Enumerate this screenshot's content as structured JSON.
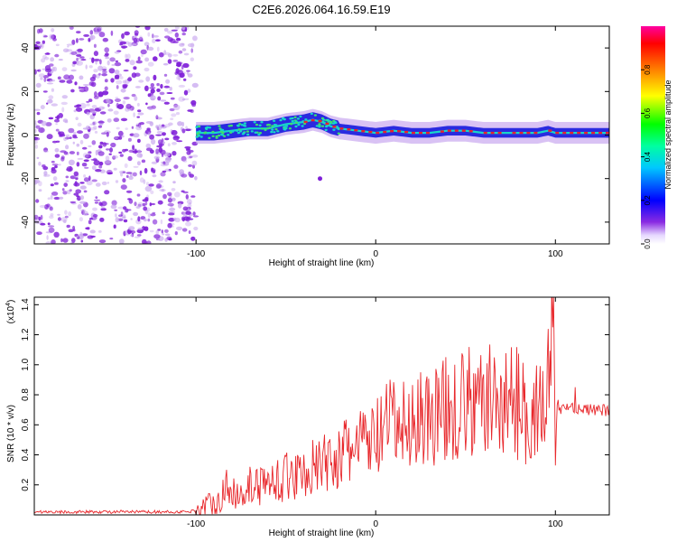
{
  "figure_title": "C2E6.2026.064.16.59.E19",
  "colors": {
    "scatter_purple": "#7f1fd8",
    "scatter_light": "#c9a8ef",
    "band_blue": "#2a2ae0",
    "band_cyan": "#18d6c8",
    "band_green": "#3ee06a",
    "band_red": "#e8242c",
    "snr_line": "#e8282c"
  },
  "chart_data": [
    {
      "type": "heatmap",
      "title": "C2E6.2026.064.16.59.E19",
      "xlabel": "Height of straight line (km)",
      "ylabel": "Frequency (Hz)",
      "xlim": [
        -190,
        130
      ],
      "ylim": [
        -50,
        50
      ],
      "xticks": [
        "-100",
        "0",
        "100"
      ],
      "xtick_values": [
        -100,
        0,
        100
      ],
      "yticks": [
        "-40",
        "-20",
        "0",
        "20",
        "40"
      ],
      "ytick_values": [
        -40,
        -20,
        0,
        20,
        40
      ],
      "noise_region_x": [
        -190,
        -100
      ],
      "ridge": {
        "x": [
          -100,
          -90,
          -80,
          -70,
          -60,
          -50,
          -40,
          -35,
          -30,
          -25,
          -20,
          -10,
          0,
          10,
          20,
          30,
          40,
          50,
          60,
          70,
          80,
          90,
          96,
          100,
          110,
          120,
          130
        ],
        "freq": [
          1,
          1,
          2,
          3,
          3,
          5,
          6,
          7,
          6,
          4,
          3,
          2,
          1,
          2,
          1,
          1,
          2,
          2,
          1,
          1,
          1,
          1,
          2,
          1,
          1,
          1,
          1
        ]
      },
      "outlier": {
        "x": -31,
        "freq": -20
      },
      "colorbar": {
        "label": "Normalized spectral amplitude",
        "ticks": [
          "0.0",
          "0.2",
          "0.4",
          "0.6",
          "0.8"
        ],
        "tick_values": [
          0.0,
          0.2,
          0.4,
          0.6,
          0.8
        ],
        "range": [
          0,
          1
        ]
      }
    },
    {
      "type": "line",
      "xlabel": "Height of straight line (km)",
      "ylabel": "SNR (10 * v/v)",
      "multiplier_label": "(x10",
      "multiplier_exp": "4",
      "multiplier_close": ")",
      "xlim": [
        -190,
        130
      ],
      "ylim": [
        0,
        1.45
      ],
      "xticks": [
        "-100",
        "0",
        "100"
      ],
      "xtick_values": [
        -100,
        0,
        100
      ],
      "yticks": [
        "0.2",
        "0.4",
        "0.6",
        "0.8",
        "1.0",
        "1.2",
        "1.4"
      ],
      "ytick_values": [
        0.2,
        0.4,
        0.6,
        0.8,
        1.0,
        1.2,
        1.4
      ],
      "series": [
        {
          "name": "SNR",
          "x": [
            -190,
            -150,
            -120,
            -105,
            -100,
            -95,
            -90,
            -85,
            -80,
            -75,
            -70,
            -65,
            -60,
            -55,
            -50,
            -45,
            -40,
            -35,
            -30,
            -25,
            -20,
            -15,
            -10,
            -5,
            0,
            5,
            10,
            15,
            20,
            25,
            30,
            35,
            40,
            45,
            50,
            55,
            60,
            65,
            70,
            75,
            80,
            85,
            90,
            95,
            97,
            99,
            100,
            101,
            103,
            105,
            110,
            115,
            120,
            125,
            130
          ],
          "y": [
            0.02,
            0.02,
            0.02,
            0.02,
            0.03,
            0.06,
            0.09,
            0.13,
            0.15,
            0.16,
            0.18,
            0.2,
            0.21,
            0.23,
            0.25,
            0.27,
            0.29,
            0.31,
            0.33,
            0.36,
            0.39,
            0.42,
            0.46,
            0.48,
            0.5,
            0.56,
            0.6,
            0.58,
            0.62,
            0.63,
            0.66,
            0.68,
            0.7,
            0.72,
            0.74,
            0.75,
            0.76,
            0.76,
            0.74,
            0.77,
            0.73,
            0.68,
            0.7,
            0.75,
            0.95,
            1.4,
            0.3,
            0.75,
            0.7,
            0.72,
            0.72,
            0.7,
            0.7,
            0.7,
            0.69
          ]
        }
      ],
      "spikes": [
        {
          "x": -83,
          "y": 0.3
        },
        {
          "x": -70,
          "y": 0.32
        },
        {
          "x": -55,
          "y": 0.3
        },
        {
          "x": -40,
          "y": 0.4
        },
        {
          "x": -20,
          "y": 0.48
        },
        {
          "x": -8,
          "y": 0.53
        },
        {
          "x": 8,
          "y": 0.9
        },
        {
          "x": 25,
          "y": 0.95
        },
        {
          "x": 44,
          "y": 1.0
        },
        {
          "x": 57,
          "y": 0.98
        },
        {
          "x": 70,
          "y": 0.9
        },
        {
          "x": 83,
          "y": 0.88
        },
        {
          "x": 99,
          "y": 1.45
        },
        {
          "x": 111,
          "y": 0.85
        }
      ]
    }
  ]
}
